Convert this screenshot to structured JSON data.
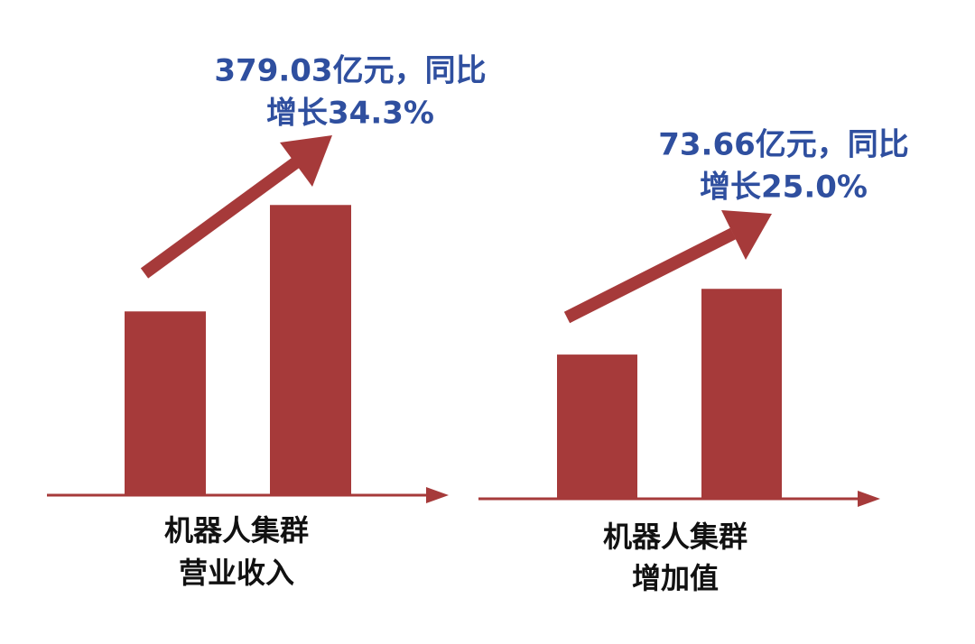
{
  "chart_data": [
    {
      "type": "bar",
      "categories": [
        null,
        null
      ],
      "values": [
        240,
        379
      ],
      "color": "#a63a3a",
      "ylim": [
        0,
        450
      ],
      "annotation": [
        "379.03亿元，同比",
        "增长34.3%"
      ],
      "xlabel": [
        "机器人集群",
        "营业收入"
      ]
    },
    {
      "type": "bar",
      "categories": [
        null,
        null
      ],
      "values": [
        50.6,
        73.66
      ],
      "color": "#a63a3a",
      "ylim": [
        0,
        100
      ],
      "annotation": [
        "73.66亿元，同比",
        "增长25.0%"
      ],
      "xlabel": [
        "机器人集群",
        "增加值"
      ]
    }
  ]
}
